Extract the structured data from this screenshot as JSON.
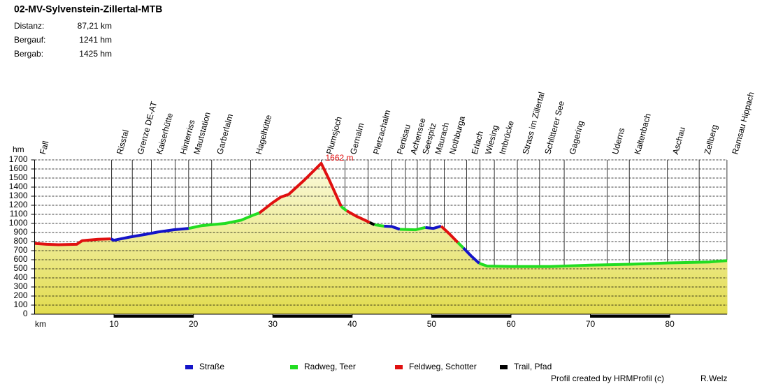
{
  "header": {
    "title": "02-MV-Sylvenstein-Zillertal-MTB",
    "stats": [
      [
        "Distanz:",
        "87,21 km"
      ],
      [
        "Bergauf:",
        "1241 hm"
      ],
      [
        "Bergab:",
        "1425 hm"
      ]
    ]
  },
  "chart_data": {
    "type": "line",
    "y_label": "hm",
    "x_label": "km",
    "xlim": [
      0,
      87.21
    ],
    "xticks": [
      10,
      20,
      30,
      40,
      50,
      60,
      70,
      80
    ],
    "ylim": [
      0,
      1700
    ],
    "yticks": [
      0,
      100,
      200,
      300,
      400,
      500,
      600,
      700,
      800,
      900,
      1000,
      1100,
      1200,
      1300,
      1400,
      1500,
      1600,
      1700
    ],
    "grid": true,
    "x": [
      0,
      1.5,
      3,
      5.3,
      6,
      8,
      9.6,
      10,
      12,
      14,
      15.5,
      17.5,
      19.4,
      21,
      24,
      26,
      27.5,
      28.3,
      30,
      31,
      32,
      34,
      36.1,
      37,
      38.6,
      38.9,
      39.3,
      40.5,
      41.5,
      42.2,
      42.8,
      44,
      45,
      46,
      48,
      49.2,
      50.2,
      51.2,
      52.3,
      53.3,
      54,
      55,
      56,
      57,
      60,
      65,
      70,
      75,
      80,
      85,
      87.21
    ],
    "series": [
      {
        "name": "Straße",
        "color": "#1414c8",
        "values": [
          null,
          null,
          null,
          null,
          null,
          null,
          830,
          815,
          850,
          880,
          905,
          930,
          945,
          null,
          null,
          null,
          null,
          null,
          null,
          null,
          null,
          null,
          null,
          null,
          null,
          null,
          null,
          null,
          null,
          null,
          null,
          970,
          965,
          935,
          null,
          955,
          945,
          970,
          null,
          null,
          730,
          640,
          560,
          null,
          null,
          null,
          null,
          null,
          null,
          null,
          null
        ]
      },
      {
        "name": "Radweg, Teer",
        "color": "#22dd22",
        "values": [
          null,
          null,
          null,
          null,
          null,
          null,
          null,
          null,
          null,
          null,
          null,
          null,
          945,
          975,
          1000,
          1035,
          1090,
          1115,
          null,
          null,
          null,
          null,
          null,
          null,
          1190,
          1165,
          1140,
          null,
          null,
          null,
          985,
          970,
          null,
          935,
          930,
          955,
          null,
          null,
          null,
          790,
          730,
          null,
          560,
          530,
          525,
          525,
          540,
          550,
          565,
          575,
          590
        ]
      },
      {
        "name": "Feldweg, Schotter",
        "color": "#e01010",
        "values": [
          780,
          770,
          765,
          770,
          810,
          825,
          830,
          null,
          null,
          null,
          null,
          null,
          null,
          null,
          null,
          null,
          null,
          1115,
          1230,
          1290,
          1320,
          1480,
          1662,
          1500,
          1190,
          null,
          1140,
          1080,
          1040,
          1010,
          null,
          null,
          null,
          null,
          null,
          null,
          null,
          970,
          880,
          790,
          null,
          null,
          null,
          null,
          null,
          null,
          null,
          null,
          null,
          null,
          null
        ]
      },
      {
        "name": "Trail, Pfad",
        "color": "#000000",
        "values": [
          null,
          null,
          null,
          null,
          null,
          null,
          null,
          null,
          null,
          null,
          null,
          null,
          null,
          null,
          null,
          null,
          null,
          null,
          null,
          null,
          null,
          null,
          null,
          null,
          null,
          null,
          null,
          null,
          null,
          1010,
          985,
          null,
          null,
          null,
          null,
          null,
          null,
          null,
          null,
          null,
          null,
          null,
          null,
          null,
          null,
          null,
          null,
          null,
          null,
          null,
          null
        ]
      }
    ],
    "annotations": [
      {
        "text": "1662 m",
        "x": 36.1,
        "y": 1662,
        "color": "#e01010"
      }
    ],
    "waypoints": [
      {
        "name": "Fall",
        "km": 0
      },
      {
        "name": "Risstal",
        "km": 9.7
      },
      {
        "name": "Grenze DE-AT",
        "km": 12.3
      },
      {
        "name": "Kaiserhütte",
        "km": 14.7
      },
      {
        "name": "Hinterriss",
        "km": 17.7
      },
      {
        "name": "Mautstation",
        "km": 19.4
      },
      {
        "name": "Garberlalm",
        "km": 22.3
      },
      {
        "name": "Hagelhütte",
        "km": 27.2
      },
      {
        "name": "Plumsjoch",
        "km": 36.1
      },
      {
        "name": "Gernalm",
        "km": 39.1
      },
      {
        "name": "Pletzachalm",
        "km": 42.0
      },
      {
        "name": "Pertisau",
        "km": 45.0
      },
      {
        "name": "Achensee",
        "km": 46.7
      },
      {
        "name": "Seespitz",
        "km": 48.2
      },
      {
        "name": "Maurach",
        "km": 49.8
      },
      {
        "name": "Nothburga",
        "km": 51.6
      },
      {
        "name": "Erlach",
        "km": 54.4
      },
      {
        "name": "Wiesing",
        "km": 56.1
      },
      {
        "name": "Imbrücke",
        "km": 57.9
      },
      {
        "name": "Strass im Zillertal",
        "km": 60.8
      },
      {
        "name": "Schlitterer See",
        "km": 63.6
      },
      {
        "name": "Gagering",
        "km": 66.7
      },
      {
        "name": "Uderns",
        "km": 72.1
      },
      {
        "name": "Kaltenbach",
        "km": 74.9
      },
      {
        "name": "Aschau",
        "km": 79.7
      },
      {
        "name": "Zellberg",
        "km": 83.7
      },
      {
        "name": "Ramsau Hippach",
        "km": 87.2
      }
    ]
  },
  "footer": {
    "credit": "Profil created by HRMProfil (c)",
    "author": "R.Welz"
  }
}
